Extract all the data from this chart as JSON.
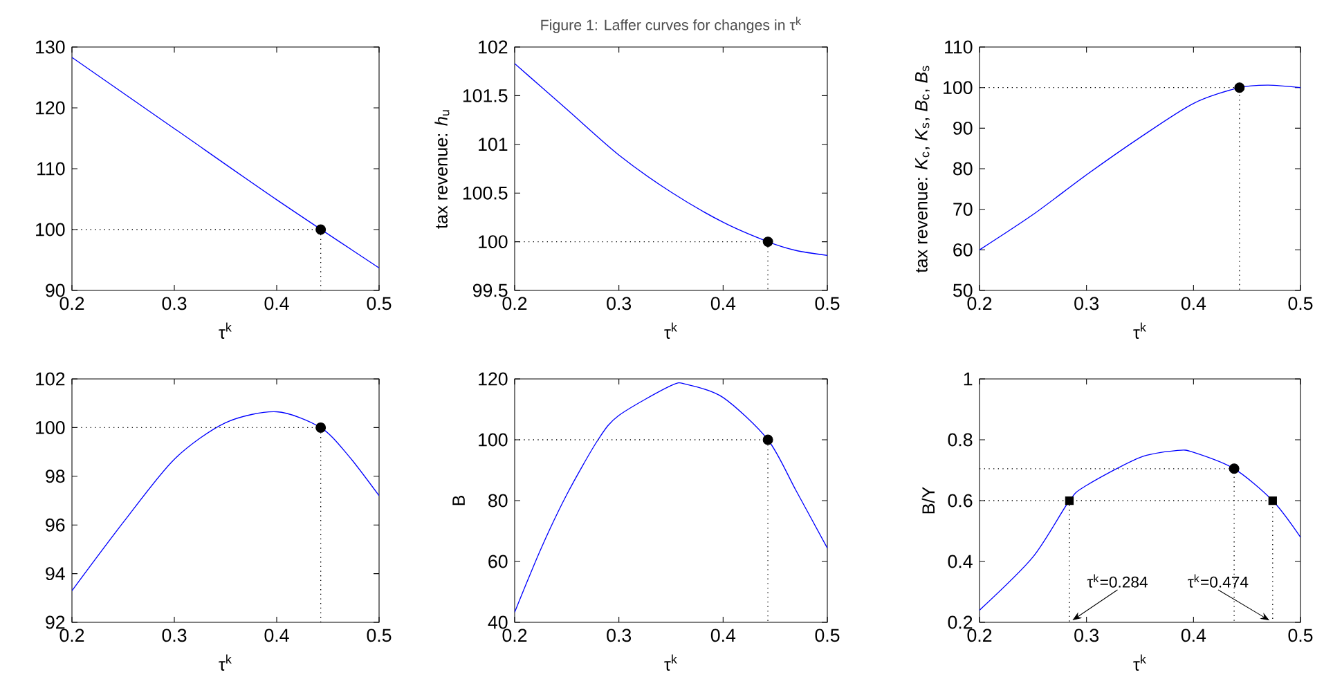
{
  "chart_data": [
    {
      "type": "line",
      "xlabel": "τ$^{k}$",
      "xlim": [
        0.2,
        0.5
      ],
      "xticks": [
        0.2,
        0.3,
        0.4,
        0.5
      ],
      "ylim": [
        90,
        130
      ],
      "yticks": [
        90,
        100,
        110,
        120,
        130
      ],
      "series": [
        {
          "color": "#0000ff",
          "x": [
            0.2,
            0.3,
            0.4,
            0.5
          ],
          "values": [
            128.3,
            116.6,
            104.9,
            93.7
          ]
        },
        {
          "type": "line",
          "line_style": "dotted",
          "color": "#000000",
          "x": [
            0.2,
            0.443,
            0.443
          ],
          "values": [
            100,
            100,
            90
          ]
        },
        {
          "type": "scatter",
          "marker": "circle",
          "color": "#000000",
          "x": [
            0.443
          ],
          "values": [
            100
          ]
        }
      ]
    },
    {
      "type": "line",
      "title": "Figure 1: Laffer curves for changes in τ$^{k}$",
      "xlabel": "τ$^{k}$",
      "ylabel": "tax revenue: *h*$_{u}$",
      "xlim": [
        0.2,
        0.5
      ],
      "xticks": [
        0.2,
        0.3,
        0.4,
        0.5
      ],
      "ylim": [
        99.5,
        102
      ],
      "yticks": [
        99.5,
        100,
        100.5,
        101,
        101.5,
        102
      ],
      "series": [
        {
          "color": "#0000ff",
          "x": [
            0.2,
            0.25,
            0.3,
            0.35,
            0.4,
            0.443,
            0.47,
            0.5
          ],
          "values": [
            101.83,
            101.36,
            100.89,
            100.51,
            100.2,
            100,
            99.91,
            99.86
          ]
        },
        {
          "type": "line",
          "line_style": "dotted",
          "color": "#000000",
          "x": [
            0.2,
            0.443,
            0.443
          ],
          "values": [
            100,
            100,
            99.5
          ]
        },
        {
          "type": "scatter",
          "marker": "circle",
          "color": "#000000",
          "x": [
            0.443
          ],
          "values": [
            100
          ]
        }
      ]
    },
    {
      "type": "line",
      "xlabel": "τ$^{k}$",
      "ylabel": "tax revenue: *K*$_{c}$, *K*$_{s}$, *B*$_{c}$, *B*$_{s}$",
      "xlim": [
        0.2,
        0.5
      ],
      "xticks": [
        0.2,
        0.3,
        0.4,
        0.5
      ],
      "ylim": [
        50,
        110
      ],
      "yticks": [
        50,
        60,
        70,
        80,
        90,
        100,
        110
      ],
      "series": [
        {
          "color": "#0000ff",
          "x": [
            0.2,
            0.25,
            0.3,
            0.35,
            0.4,
            0.443,
            0.47,
            0.5
          ],
          "values": [
            60,
            68.7,
            78.5,
            87.7,
            96.1,
            100,
            100.6,
            100
          ]
        },
        {
          "type": "line",
          "line_style": "dotted",
          "color": "#000000",
          "x": [
            0.2,
            0.443,
            0.443
          ],
          "values": [
            100,
            100,
            50
          ]
        },
        {
          "type": "scatter",
          "marker": "circle",
          "color": "#000000",
          "x": [
            0.443
          ],
          "values": [
            100
          ]
        }
      ]
    },
    {
      "type": "line",
      "xlabel": "τ$^{k}$",
      "xlim": [
        0.2,
        0.5
      ],
      "xticks": [
        0.2,
        0.3,
        0.4,
        0.5
      ],
      "ylim": [
        92,
        102
      ],
      "yticks": [
        92,
        94,
        96,
        98,
        100,
        102
      ],
      "series": [
        {
          "color": "#0000ff",
          "x": [
            0.2,
            0.25,
            0.3,
            0.35,
            0.4,
            0.443,
            0.47,
            0.5
          ],
          "values": [
            93.3,
            96.1,
            98.7,
            100.2,
            100.65,
            100,
            98.85,
            97.2
          ]
        },
        {
          "type": "line",
          "line_style": "dotted",
          "color": "#000000",
          "x": [
            0.2,
            0.443,
            0.443
          ],
          "values": [
            100,
            100,
            92
          ]
        },
        {
          "type": "scatter",
          "marker": "circle",
          "color": "#000000",
          "x": [
            0.443
          ],
          "values": [
            100
          ]
        }
      ]
    },
    {
      "type": "line",
      "xlabel": "τ$^{k}$",
      "ylabel": "B",
      "xlim": [
        0.2,
        0.5
      ],
      "xticks": [
        0.2,
        0.3,
        0.4,
        0.5
      ],
      "ylim": [
        40,
        120
      ],
      "yticks": [
        40,
        60,
        80,
        100,
        120
      ],
      "series": [
        {
          "color": "#0000ff",
          "x": [
            0.2,
            0.225,
            0.25,
            0.28,
            0.3,
            0.35,
            0.365,
            0.4,
            0.443,
            0.47,
            0.5
          ],
          "values": [
            43.3,
            64,
            82,
            100,
            108,
            117.8,
            118.2,
            113.9,
            100,
            83.3,
            64.4
          ]
        },
        {
          "type": "line",
          "line_style": "dotted",
          "color": "#000000",
          "x": [
            0.2,
            0.443,
            0.443
          ],
          "values": [
            100,
            100,
            40
          ]
        },
        {
          "type": "scatter",
          "marker": "circle",
          "color": "#000000",
          "x": [
            0.443
          ],
          "values": [
            100
          ]
        }
      ]
    },
    {
      "type": "line",
      "xlabel": "τ$^{k}$",
      "ylabel": "B/Y",
      "xlim": [
        0.2,
        0.5
      ],
      "xticks": [
        0.2,
        0.3,
        0.4,
        0.5
      ],
      "ylim": [
        0.2,
        1
      ],
      "yticks": [
        0.2,
        0.4,
        0.6,
        0.8,
        1
      ],
      "annotations": [
        {
          "text": "τ$^{k}$=0.284",
          "x": 0.284,
          "y": 0.2
        },
        {
          "text": "τ$^{k}$=0.474",
          "x": 0.474,
          "y": 0.2
        }
      ],
      "series": [
        {
          "color": "#0000ff",
          "x": [
            0.2,
            0.25,
            0.284,
            0.3,
            0.35,
            0.385,
            0.4,
            0.438,
            0.474,
            0.5
          ],
          "values": [
            0.24,
            0.415,
            0.6,
            0.65,
            0.742,
            0.765,
            0.759,
            0.705,
            0.6,
            0.48
          ]
        },
        {
          "type": "line",
          "line_style": "dotted",
          "color": "#000000",
          "x": [
            0.2,
            0.438,
            0.438
          ],
          "values": [
            0.705,
            0.705,
            0.2
          ]
        },
        {
          "type": "line",
          "line_style": "dotted",
          "color": "#000000",
          "x": [
            0.2,
            0.474,
            0.474
          ],
          "values": [
            0.6,
            0.6,
            0.2
          ]
        },
        {
          "type": "line",
          "line_style": "dotted",
          "color": "#000000",
          "x": [
            0.284,
            0.284
          ],
          "values": [
            0.6,
            0.2
          ]
        },
        {
          "type": "scatter",
          "marker": "circle",
          "color": "#000000",
          "x": [
            0.438
          ],
          "values": [
            0.705
          ]
        },
        {
          "type": "scatter",
          "marker": "square",
          "color": "#000000",
          "x": [
            0.284,
            0.474
          ],
          "values": [
            0.6,
            0.6
          ]
        }
      ]
    }
  ]
}
